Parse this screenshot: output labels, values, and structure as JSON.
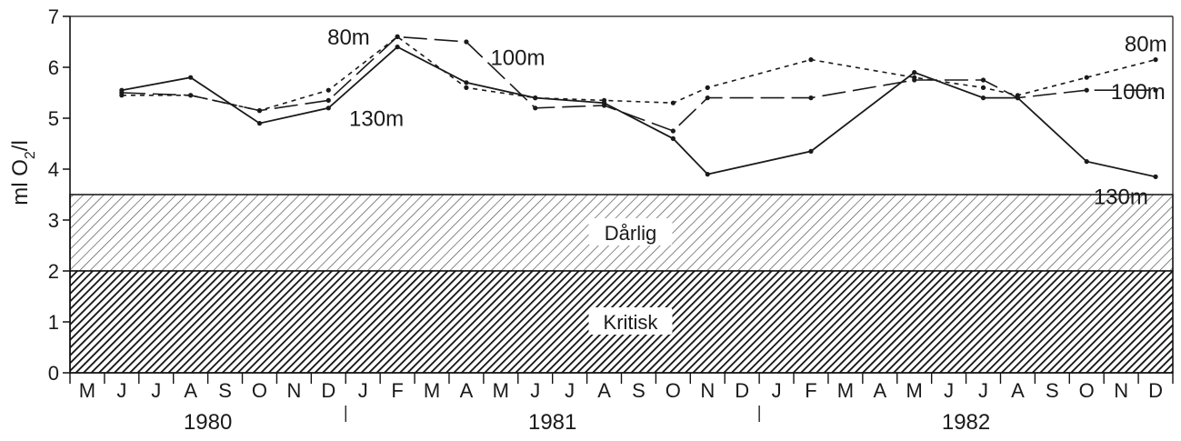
{
  "chart_data": {
    "type": "line",
    "ylabel_parts": [
      "ml O",
      "2",
      "/l"
    ],
    "ylim": [
      0,
      7
    ],
    "yticks": [
      "0",
      "1",
      "2",
      "3",
      "4",
      "5",
      "6",
      "7"
    ],
    "months": [
      "M",
      "J",
      "J",
      "A",
      "S",
      "O",
      "N",
      "D",
      "J",
      "F",
      "M",
      "A",
      "M",
      "J",
      "J",
      "A",
      "S",
      "O",
      "N",
      "D",
      "J",
      "F",
      "M",
      "A",
      "M",
      "J",
      "J",
      "A",
      "S",
      "O",
      "N",
      "D"
    ],
    "years": [
      {
        "label": "1980",
        "start": 0,
        "end": 7
      },
      {
        "label": "1981",
        "start": 8,
        "end": 19
      },
      {
        "label": "1982",
        "start": 20,
        "end": 31
      }
    ],
    "zones": [
      {
        "label": "Dårlig",
        "from": 2,
        "to": 3.5
      },
      {
        "label": "Kritisk",
        "from": 0,
        "to": 2
      }
    ],
    "series": [
      {
        "name": "130m",
        "style": "solid",
        "points": [
          [
            1,
            5.55
          ],
          [
            3,
            5.8
          ],
          [
            5,
            4.9
          ],
          [
            7,
            5.2
          ],
          [
            9,
            6.4
          ],
          [
            11,
            5.7
          ],
          [
            13,
            5.4
          ],
          [
            15,
            5.3
          ],
          [
            17,
            4.6
          ],
          [
            18,
            3.9
          ],
          [
            21,
            4.35
          ],
          [
            24,
            5.9
          ],
          [
            26,
            5.4
          ],
          [
            27,
            5.4
          ],
          [
            29,
            4.15
          ],
          [
            31,
            3.85
          ]
        ]
      },
      {
        "name": "100m",
        "style": "longdash",
        "points": [
          [
            1,
            5.5
          ],
          [
            3,
            5.45
          ],
          [
            5,
            5.15
          ],
          [
            7,
            5.35
          ],
          [
            9,
            6.6
          ],
          [
            11,
            6.5
          ],
          [
            13,
            5.2
          ],
          [
            15,
            5.25
          ],
          [
            17,
            4.75
          ],
          [
            18,
            5.4
          ],
          [
            21,
            5.4
          ],
          [
            24,
            5.75
          ],
          [
            26,
            5.75
          ],
          [
            27,
            5.4
          ],
          [
            29,
            5.55
          ],
          [
            31,
            5.55
          ]
        ]
      },
      {
        "name": "80m",
        "style": "dotted",
        "points": [
          [
            1,
            5.45
          ],
          [
            3,
            5.45
          ],
          [
            5,
            5.15
          ],
          [
            7,
            5.55
          ],
          [
            9,
            6.6
          ],
          [
            11,
            5.6
          ],
          [
            13,
            5.4
          ],
          [
            15,
            5.35
          ],
          [
            17,
            5.3
          ],
          [
            18,
            5.6
          ],
          [
            21,
            6.15
          ],
          [
            24,
            5.8
          ],
          [
            26,
            5.6
          ],
          [
            27,
            5.45
          ],
          [
            29,
            5.8
          ],
          [
            31,
            6.15
          ]
        ]
      }
    ],
    "series_labels": [
      {
        "text": "80m",
        "series": "80m"
      },
      {
        "text": "100m",
        "series": "100m"
      },
      {
        "text": "130m",
        "series": "130m"
      },
      {
        "text": "80m",
        "series": "80m"
      },
      {
        "text": "100m",
        "series": "100m"
      },
      {
        "text": "130m",
        "series": "130m"
      }
    ]
  }
}
